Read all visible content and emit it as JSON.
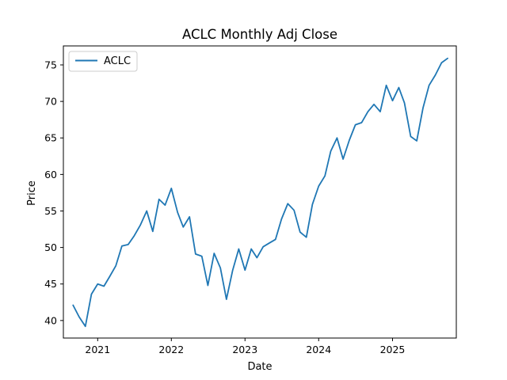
{
  "chart_data": {
    "type": "line",
    "title": "ACLC Monthly Adj Close",
    "xlabel": "Date",
    "ylabel": "Price",
    "x_ticks": [
      "2021",
      "2022",
      "2023",
      "2024",
      "2025"
    ],
    "y_ticks": [
      40,
      45,
      50,
      55,
      60,
      65,
      70,
      75
    ],
    "xlim": [
      "2020-07-15",
      "2025-11-13"
    ],
    "ylim": [
      37.6,
      77.6
    ],
    "grid": false,
    "legend_position": "upper left",
    "series_color": "#1f77b4",
    "series": [
      {
        "name": "ACLC",
        "x": [
          "2020-09-01",
          "2020-10-01",
          "2020-11-01",
          "2020-12-01",
          "2021-01-01",
          "2021-02-01",
          "2021-03-01",
          "2021-04-01",
          "2021-05-01",
          "2021-06-01",
          "2021-07-01",
          "2021-08-01",
          "2021-09-01",
          "2021-10-01",
          "2021-11-01",
          "2021-12-01",
          "2022-01-01",
          "2022-02-01",
          "2022-03-01",
          "2022-04-01",
          "2022-05-01",
          "2022-06-01",
          "2022-07-01",
          "2022-08-01",
          "2022-09-01",
          "2022-10-01",
          "2022-11-01",
          "2022-12-01",
          "2023-01-01",
          "2023-02-01",
          "2023-03-01",
          "2023-04-01",
          "2023-05-01",
          "2023-06-01",
          "2023-07-01",
          "2023-08-01",
          "2023-09-01",
          "2023-10-01",
          "2023-11-01",
          "2023-12-01",
          "2024-01-01",
          "2024-02-01",
          "2024-03-01",
          "2024-04-01",
          "2024-05-01",
          "2024-06-01",
          "2024-07-01",
          "2024-08-01",
          "2024-09-01",
          "2024-10-01",
          "2024-11-01",
          "2024-12-01",
          "2025-01-01",
          "2025-02-01",
          "2025-03-01",
          "2025-04-01",
          "2025-05-01",
          "2025-06-01",
          "2025-07-01",
          "2025-08-01",
          "2025-09-01",
          "2025-10-01"
        ],
        "values": [
          42.1,
          40.5,
          39.2,
          43.6,
          45.0,
          44.7,
          46.0,
          47.5,
          50.2,
          50.4,
          51.6,
          53.1,
          55.0,
          52.2,
          56.6,
          55.8,
          58.1,
          54.8,
          52.8,
          54.2,
          49.1,
          48.8,
          44.8,
          49.2,
          47.2,
          42.9,
          46.9,
          49.8,
          46.9,
          49.8,
          48.6,
          50.1,
          50.6,
          51.1,
          53.9,
          56.0,
          55.1,
          52.1,
          51.4,
          55.9,
          58.4,
          59.8,
          63.2,
          65.0,
          62.1,
          64.7,
          66.8,
          67.1,
          68.6,
          69.6,
          68.6,
          72.2,
          70.1,
          71.9,
          69.8,
          65.2,
          64.6,
          69.1,
          72.2,
          73.6,
          75.3,
          75.9
        ]
      }
    ]
  }
}
